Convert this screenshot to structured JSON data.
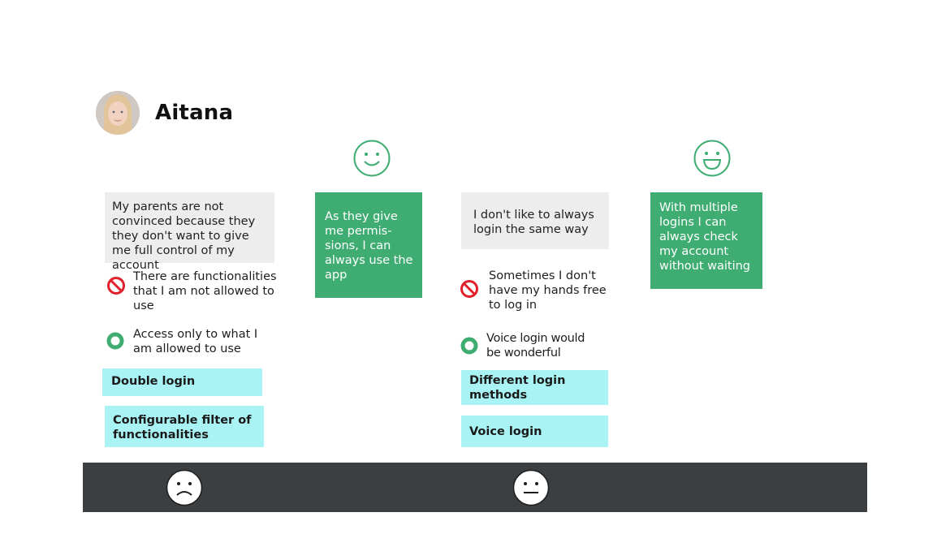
{
  "persona": {
    "name": "Aitana"
  },
  "columns": [
    {
      "note": "My parents are not convinced because they they don't want to give me full control of my account",
      "pain": "There are functionalities that I am not allowed to use",
      "gain": "Access only to what I am allowed to use",
      "ideas": [
        "Double login",
        "Configurable filter of functionalities"
      ]
    },
    {
      "note": "As they give me permis-sions, I can always use the app"
    },
    {
      "note": "I don't like to always login the same way",
      "pain": "Sometimes I don't have my hands free to log in",
      "gain": "Voice login would be wonderful",
      "ideas": [
        "Different login methods",
        "Voice login"
      ]
    },
    {
      "note": "With multiple logins I can always check my account without waiting"
    }
  ],
  "icons": {
    "happy_face": "smiling-face-icon",
    "happier_face": "grinning-face-icon",
    "sad_face": "sad-face-icon",
    "neutral_face": "neutral-face-icon",
    "pain": "prohibited-icon",
    "gain": "ring-icon"
  },
  "colors": {
    "accent_green": "#3fad72",
    "note_grey": "#ededed",
    "idea_cyan": "#aaf3f4",
    "pain_red": "#e0202b",
    "bar_dark": "#3b3f42"
  }
}
